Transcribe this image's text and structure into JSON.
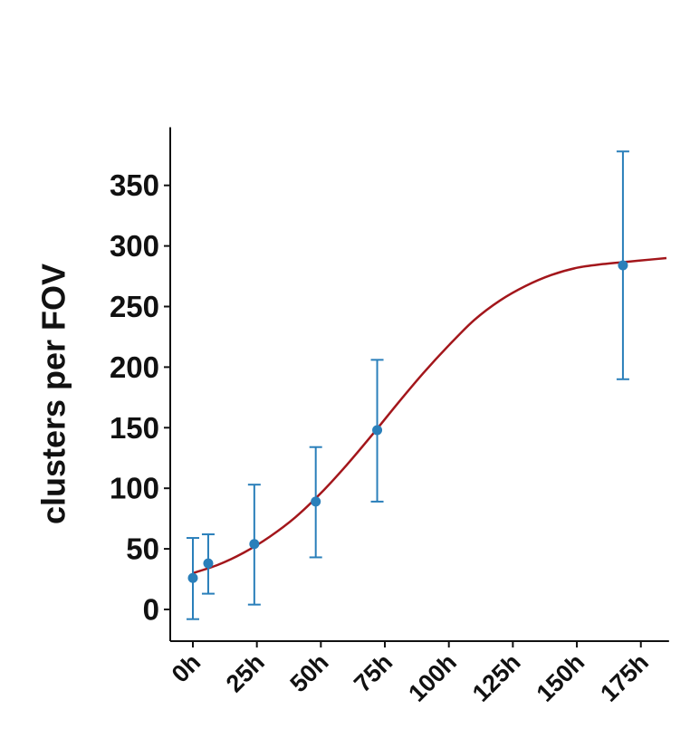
{
  "chart_data": {
    "type": "scatter",
    "title": "",
    "xlabel": "",
    "ylabel": "clusters per FOV",
    "xlim": [
      -9,
      186
    ],
    "ylim": [
      -25,
      398
    ],
    "x_ticks": [
      0,
      25,
      50,
      75,
      100,
      125,
      150,
      175
    ],
    "x_tick_labels": [
      "0h",
      "25h",
      "50h",
      "75h",
      "100h",
      "125h",
      "150h",
      "175h"
    ],
    "y_ticks": [
      0,
      50,
      100,
      150,
      200,
      250,
      300,
      350
    ],
    "y_tick_labels": [
      "0",
      "50",
      "100",
      "150",
      "200",
      "250",
      "300",
      "350"
    ],
    "grid": false,
    "legend": "none",
    "series": [
      {
        "kind": "points-with-error-bars",
        "color": "#2a7fba",
        "points": [
          {
            "x": 0,
            "y": 26,
            "low": -8,
            "high": 59
          },
          {
            "x": 6,
            "y": 38,
            "low": 13,
            "high": 62
          },
          {
            "x": 24,
            "y": 54,
            "low": 4,
            "high": 103
          },
          {
            "x": 48,
            "y": 89,
            "low": 43,
            "high": 134
          },
          {
            "x": 72,
            "y": 148,
            "low": 89,
            "high": 206
          },
          {
            "x": 168,
            "y": 284,
            "low": 190,
            "high": 378
          }
        ]
      },
      {
        "kind": "fitted-curve",
        "color": "#a3161b",
        "x": [
          0,
          10,
          20,
          30,
          40,
          50,
          60,
          70,
          80,
          90,
          100,
          110,
          120,
          130,
          140,
          150,
          160,
          170,
          180,
          185
        ],
        "y": [
          30,
          37,
          47,
          60,
          76,
          96,
          119,
          144,
          170,
          195,
          218,
          239,
          255,
          267,
          276,
          282,
          285,
          287,
          289,
          290
        ]
      }
    ]
  }
}
